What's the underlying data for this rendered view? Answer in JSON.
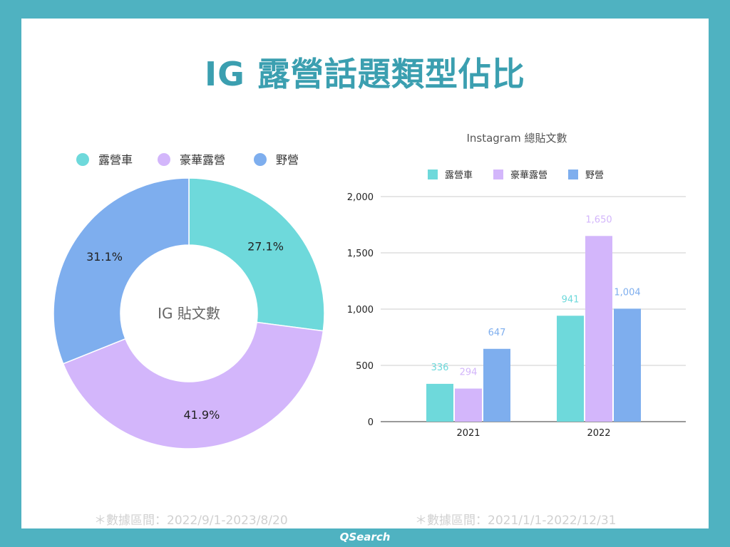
{
  "title": "IG 露營話題類型佔比",
  "colors": {
    "frame": "#4fb2c1",
    "title": "#3b9fb0",
    "camper": "#6ed9db",
    "glamping": "#d3b6fb",
    "wild": "#7eaeee"
  },
  "chart_data": [
    {
      "type": "pie",
      "donut": true,
      "center_label": "IG 貼文數",
      "legend": [
        "露營車",
        "豪華露營",
        "野營"
      ],
      "legend_position": "top-left",
      "slices": [
        {
          "name": "露營車",
          "value": 27.1,
          "label": "27.1%"
        },
        {
          "name": "豪華露營",
          "value": 41.9,
          "label": "41.9%"
        },
        {
          "name": "野營",
          "value": 31.1,
          "label": "31.1%"
        }
      ]
    },
    {
      "type": "bar",
      "title": "Instagram 總貼文數",
      "categories": [
        "2021",
        "2022"
      ],
      "series": [
        {
          "name": "露營車",
          "values": [
            336,
            941
          ],
          "labels": [
            "336",
            "941"
          ]
        },
        {
          "name": "豪華露營",
          "values": [
            294,
            1650
          ],
          "labels": [
            "294",
            "1,650"
          ]
        },
        {
          "name": "野營",
          "values": [
            647,
            1004
          ],
          "labels": [
            "647",
            "1,004"
          ]
        }
      ],
      "yticks": [
        "0",
        "500",
        "1,000",
        "1,500",
        "2,000"
      ],
      "ytick_values": [
        0,
        500,
        1000,
        1500,
        2000
      ],
      "ylim": [
        0,
        2000
      ],
      "grid": true,
      "legend_position": "top"
    }
  ],
  "notes": {
    "left": "＊數據區間：2022/9/1-2023/8/20",
    "right": "＊數據區間：2021/1/1-2022/12/31"
  },
  "brand": "QSearch"
}
